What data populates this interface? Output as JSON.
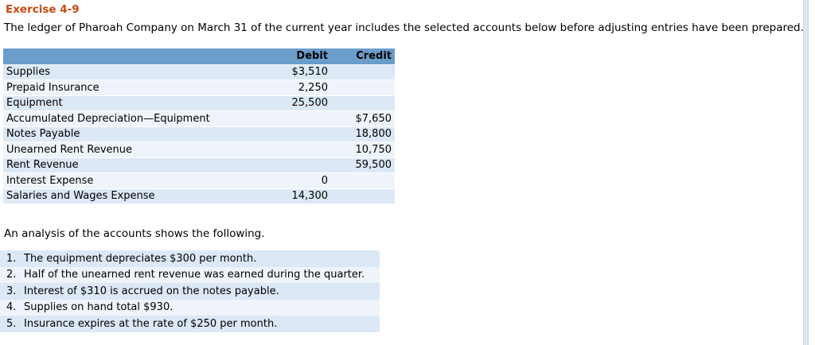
{
  "title": "Exercise 4-9",
  "intro": "The ledger of Pharoah Company on March 31 of the current year includes the selected accounts below before adjusting entries have been prepared.",
  "table": {
    "debit_header": "Debit",
    "credit_header": "Credit",
    "rows": [
      {
        "account": "Supplies",
        "debit": "$3,510",
        "credit": ""
      },
      {
        "account": "Prepaid Insurance",
        "debit": "2,250",
        "credit": ""
      },
      {
        "account": "Equipment",
        "debit": "25,500",
        "credit": ""
      },
      {
        "account": "Accumulated Depreciation—Equipment",
        "debit": "",
        "credit": "$7,650"
      },
      {
        "account": "Notes Payable",
        "debit": "",
        "credit": "18,800"
      },
      {
        "account": "Unearned Rent Revenue",
        "debit": "",
        "credit": "10,750"
      },
      {
        "account": "Rent Revenue",
        "debit": "",
        "credit": "59,500"
      },
      {
        "account": "Interest Expense",
        "debit": "0",
        "credit": ""
      },
      {
        "account": "Salaries and Wages Expense",
        "debit": "14,300",
        "credit": ""
      }
    ]
  },
  "analysis_heading": "An analysis of the accounts shows the following.",
  "analysis_items": [
    {
      "num": "1.",
      "text": "The equipment depreciates $300 per month."
    },
    {
      "num": "2.",
      "text": "Half of the unearned rent revenue was earned during the quarter."
    },
    {
      "num": "3.",
      "text": "Interest of $310 is accrued on the notes payable."
    },
    {
      "num": "4.",
      "text": "Supplies on hand total $930."
    },
    {
      "num": "5.",
      "text": "Insurance expires at the rate of $250 per month."
    }
  ],
  "colors": {
    "title_orange": "#C8490D",
    "table_header_blue": "#6B9DCB",
    "stripe_blue": "#DCE8F5",
    "stripe_light": "#EEF4FA"
  }
}
